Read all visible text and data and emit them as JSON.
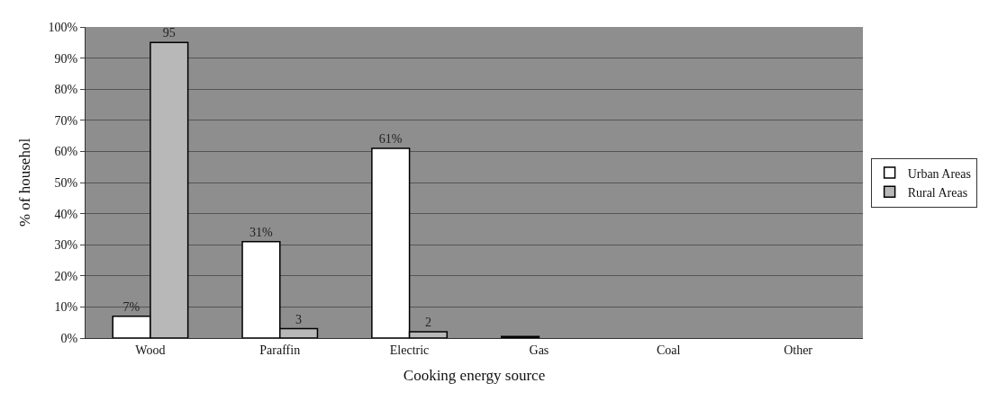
{
  "chart_data": {
    "type": "bar",
    "xlabel": "Cooking energy source",
    "ylabel": "% of househol",
    "categories": [
      "Wood",
      "Paraffin",
      "Electric",
      "Gas",
      "Coal",
      "Other"
    ],
    "series": [
      {
        "name": "Urban Areas",
        "color": "#ffffff",
        "colors": [
          "#ffffff",
          "#ffffff",
          "#ffffff",
          "#202020",
          "#ffffff",
          "#ffffff"
        ],
        "values": [
          7,
          31,
          61,
          0.5,
          null,
          null
        ],
        "value_labels": [
          "7%",
          "31%",
          "61%",
          null,
          null,
          null
        ]
      },
      {
        "name": "Rural Areas",
        "color": "#b8b8b8",
        "values": [
          95,
          3,
          2,
          null,
          null,
          null
        ],
        "value_labels": [
          "95",
          "3",
          "2",
          null,
          null,
          null
        ]
      }
    ],
    "ylim": [
      0,
      100
    ],
    "yticks": [
      {
        "value": 0,
        "label": "0%"
      },
      {
        "value": 10,
        "label": "10%"
      },
      {
        "value": 20,
        "label": "20%"
      },
      {
        "value": 30,
        "label": "30%"
      },
      {
        "value": 40,
        "label": "40%"
      },
      {
        "value": 50,
        "label": "50%"
      },
      {
        "value": 60,
        "label": "60%"
      },
      {
        "value": 70,
        "label": "70%"
      },
      {
        "value": 80,
        "label": "80%"
      },
      {
        "value": 90,
        "label": "90%"
      },
      {
        "value": 100,
        "label": "100%"
      }
    ],
    "grid": "y",
    "legend": "right"
  }
}
